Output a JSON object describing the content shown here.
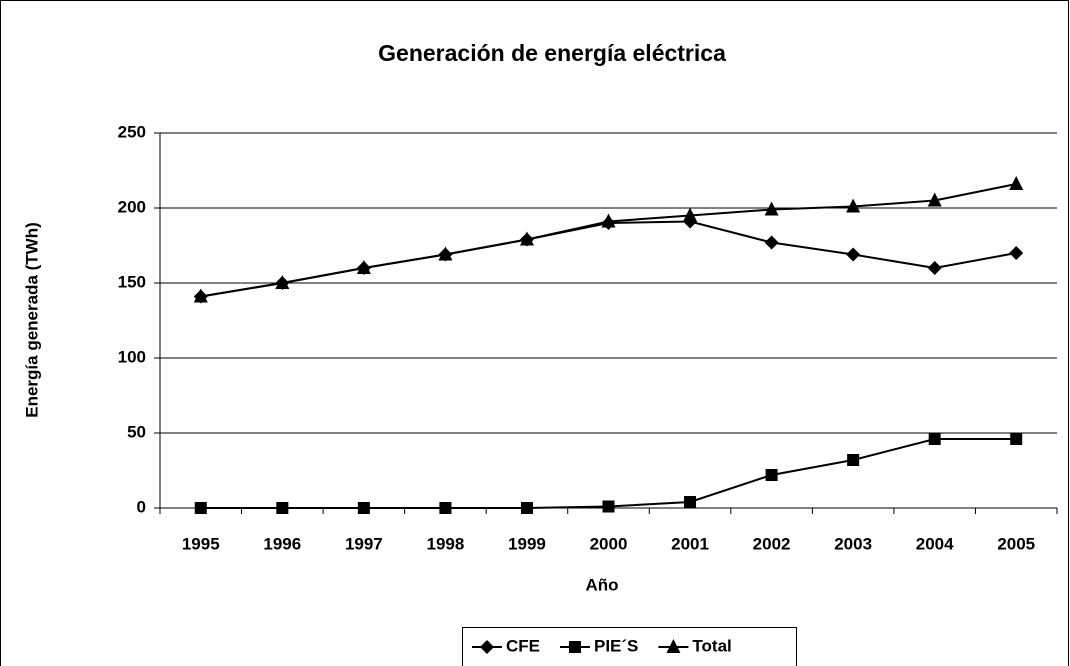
{
  "chart_data": {
    "type": "line",
    "title": "Generación de energía eléctrica",
    "x_label": "Año",
    "y_label": "Energía generada (TWh)",
    "categories": [
      "1995",
      "1996",
      "1997",
      "1998",
      "1999",
      "2000",
      "2001",
      "2002",
      "2003",
      "2004",
      "2005"
    ],
    "series": [
      {
        "name": "CFE",
        "color": "#000000",
        "marker": "diamond",
        "values": [
          141,
          150,
          160,
          169,
          179,
          190,
          191,
          177,
          169,
          160,
          170
        ]
      },
      {
        "name": "PIE´S",
        "color": "#000000",
        "marker": "square",
        "values": [
          0,
          0,
          0,
          0,
          0,
          1,
          4,
          22,
          32,
          46,
          46
        ]
      },
      {
        "name": "Total",
        "color": "#000000",
        "marker": "triangle",
        "values": [
          141,
          150,
          160,
          169,
          179,
          191,
          195,
          199,
          201,
          205,
          216
        ]
      }
    ],
    "ylim": [
      0,
      250
    ],
    "yticks": [
      0,
      50,
      100,
      150,
      200,
      250
    ],
    "grid": true,
    "legend": "bottom"
  }
}
